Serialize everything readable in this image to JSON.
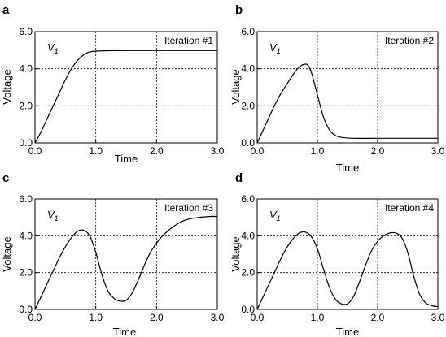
{
  "figure": {
    "panels": [
      {
        "letter": "a",
        "iteration_label": "Iteration #1",
        "signal": "V",
        "signal_sub": "1"
      },
      {
        "letter": "b",
        "iteration_label": "Iteration #2",
        "signal": "V",
        "signal_sub": "1"
      },
      {
        "letter": "c",
        "iteration_label": "Iteration #3",
        "signal": "V",
        "signal_sub": "1"
      },
      {
        "letter": "d",
        "iteration_label": "Iteration #4",
        "signal": "V",
        "signal_sub": "1"
      }
    ]
  },
  "chart_data": [
    {
      "type": "line",
      "xlabel": "Time",
      "ylabel": "Voltage",
      "xlim": [
        0,
        3
      ],
      "ylim": [
        0,
        6
      ],
      "xticks": [
        "0.0",
        "1.0",
        "2.0",
        "3.0"
      ],
      "yticks": [
        "0.0",
        "2.0",
        "4.0",
        "6.0"
      ],
      "grid": "dotted at x=1,2 and y=2,4",
      "series": [
        {
          "x": [
            0,
            0.1,
            0.2,
            0.3,
            0.4,
            0.5,
            0.6,
            0.7,
            0.8,
            0.9,
            1.0,
            1.2,
            1.5,
            2.0,
            2.5,
            3.0
          ],
          "y": [
            0,
            0.6,
            1.3,
            2.0,
            2.7,
            3.4,
            4.0,
            4.45,
            4.75,
            4.9,
            4.95,
            4.97,
            4.98,
            4.98,
            4.98,
            4.98
          ]
        }
      ]
    },
    {
      "type": "line",
      "xlabel": "Time",
      "ylabel": "Voltage",
      "xlim": [
        0,
        3
      ],
      "ylim": [
        0,
        6
      ],
      "xticks": [
        "0.0",
        "1.0",
        "2.0",
        "3.0"
      ],
      "yticks": [
        "0.0",
        "2.0",
        "4.0",
        "6.0"
      ],
      "grid": "dotted at x=1,2 and y=2,4",
      "series": [
        {
          "x": [
            0,
            0.1,
            0.2,
            0.3,
            0.4,
            0.5,
            0.6,
            0.7,
            0.8,
            0.85,
            0.9,
            1.0,
            1.1,
            1.2,
            1.3,
            1.4,
            1.6,
            2.0,
            2.5,
            3.0
          ],
          "y": [
            0,
            0.7,
            1.4,
            2.1,
            2.7,
            3.2,
            3.7,
            4.1,
            4.25,
            4.15,
            3.8,
            2.6,
            1.4,
            0.7,
            0.4,
            0.3,
            0.25,
            0.25,
            0.25,
            0.25
          ]
        }
      ]
    },
    {
      "type": "line",
      "xlabel": "Time",
      "ylabel": "Voltage",
      "xlim": [
        0,
        3
      ],
      "ylim": [
        0,
        6
      ],
      "xticks": [
        "0.0",
        "1.0",
        "2.0",
        "3.0"
      ],
      "yticks": [
        "0.0",
        "2.0",
        "4.0",
        "6.0"
      ],
      "grid": "dotted at x=1,2 and y=2,4",
      "series": [
        {
          "x": [
            0,
            0.1,
            0.2,
            0.3,
            0.4,
            0.5,
            0.6,
            0.7,
            0.8,
            0.9,
            1.0,
            1.1,
            1.2,
            1.3,
            1.4,
            1.5,
            1.6,
            1.7,
            1.8,
            1.9,
            2.0,
            2.1,
            2.2,
            2.3,
            2.4,
            2.5,
            2.6,
            2.7,
            2.8,
            2.9,
            3.0
          ],
          "y": [
            0,
            0.7,
            1.4,
            2.1,
            2.8,
            3.4,
            3.9,
            4.25,
            4.3,
            4.0,
            3.1,
            1.9,
            1.0,
            0.6,
            0.45,
            0.5,
            0.9,
            1.6,
            2.4,
            3.1,
            3.6,
            4.0,
            4.3,
            4.55,
            4.75,
            4.88,
            4.95,
            5.0,
            5.03,
            5.05,
            5.05
          ]
        }
      ]
    },
    {
      "type": "line",
      "xlabel": "Time",
      "ylabel": "Voltage",
      "xlim": [
        0,
        3
      ],
      "ylim": [
        0,
        6
      ],
      "xticks": [
        "0.0",
        "1.0",
        "2.0",
        "3.0"
      ],
      "yticks": [
        "0.0",
        "2.0",
        "4.0",
        "6.0"
      ],
      "grid": "dotted at x=1,2 and y=2,4",
      "series": [
        {
          "x": [
            0,
            0.1,
            0.2,
            0.3,
            0.4,
            0.5,
            0.6,
            0.7,
            0.8,
            0.9,
            1.0,
            1.1,
            1.2,
            1.3,
            1.4,
            1.5,
            1.6,
            1.7,
            1.8,
            1.9,
            2.0,
            2.1,
            2.2,
            2.3,
            2.4,
            2.5,
            2.6,
            2.7,
            2.8,
            2.9,
            3.0
          ],
          "y": [
            0,
            0.7,
            1.4,
            2.1,
            2.8,
            3.4,
            3.85,
            4.15,
            4.2,
            3.95,
            3.3,
            2.2,
            1.2,
            0.55,
            0.3,
            0.3,
            0.7,
            1.5,
            2.4,
            3.2,
            3.7,
            4.0,
            4.15,
            4.15,
            3.9,
            3.1,
            1.8,
            0.8,
            0.35,
            0.2,
            0.15
          ]
        }
      ]
    }
  ]
}
